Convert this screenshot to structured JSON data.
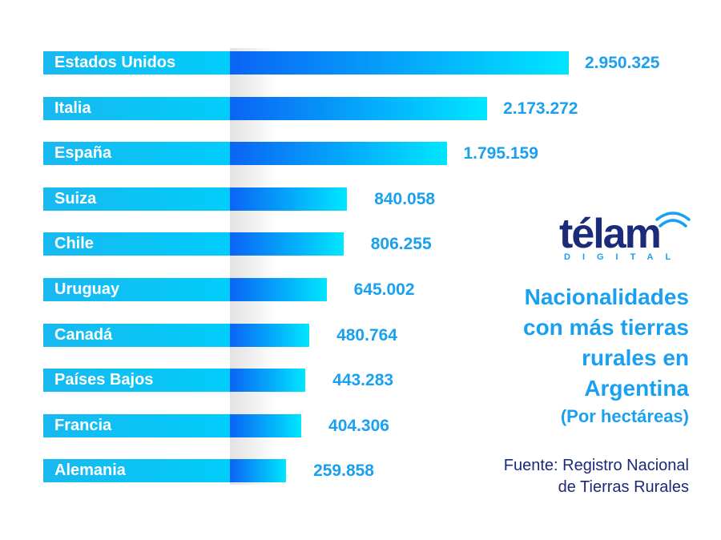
{
  "chart_data": {
    "type": "bar",
    "orientation": "horizontal",
    "title": "Nacionalidades con más tierras rurales en Argentina",
    "subtitle": "(Por hectáreas)",
    "source": "Fuente: Registro Nacional de Tierras Rurales",
    "xlabel": "",
    "ylabel": "",
    "categories": [
      "Estados Unidos",
      "Italia",
      "España",
      "Suiza",
      "Chile",
      "Uruguay",
      "Canadá",
      "Países Bajos",
      "Francia",
      "Alemania"
    ],
    "values": [
      2950325,
      2173272,
      1795159,
      840058,
      806255,
      645002,
      480764,
      443283,
      404306,
      259858
    ],
    "value_labels": [
      "2.950.325",
      "2.173.272",
      "1.795.159",
      "840.058",
      "806.255",
      "645.002",
      "480.764",
      "443.283",
      "404.306",
      "259.858"
    ],
    "units": "hectáreas",
    "grid": false,
    "legend": "none"
  },
  "title_lines": [
    "Nacionalidades",
    "con más tierras",
    "rurales en",
    "Argentina"
  ],
  "subtitle": "(Por hectáreas)",
  "source_lines": [
    "Fuente: Registro Nacional",
    "de Tierras Rurales"
  ],
  "logo": {
    "word": "télam",
    "sub": "DIGITAL"
  },
  "colors": {
    "label_band": "#18b8f0",
    "bar_start": "#0a64f5",
    "bar_end": "#00e6ff",
    "value_text": "#1aa0f0",
    "title_text": "#1aa0f0",
    "source_text": "#1c2a7a",
    "logo_text": "#1c2a7a"
  }
}
